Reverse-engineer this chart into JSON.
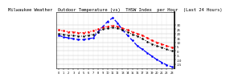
{
  "title": "Milwaukee Weather  Outdoor Temperature (vs)  THSW Index  per Hour  (Last 24 Hours)",
  "outdoor_temp": [
    24,
    23,
    22,
    22,
    21,
    21,
    22,
    23,
    25,
    27,
    28,
    29,
    28,
    26,
    24,
    22,
    20,
    18,
    15,
    12,
    10,
    8,
    6,
    4
  ],
  "thsw_index": [
    18,
    16,
    15,
    14,
    13,
    13,
    14,
    15,
    22,
    28,
    34,
    38,
    32,
    24,
    18,
    12,
    6,
    2,
    -2,
    -6,
    -10,
    -13,
    -16,
    -18
  ],
  "heat_index": [
    20,
    19,
    18,
    18,
    17,
    17,
    18,
    19,
    22,
    25,
    26,
    27,
    26,
    24,
    22,
    19,
    17,
    14,
    11,
    8,
    6,
    4,
    2,
    0
  ],
  "hours": [
    "0",
    "1",
    "2",
    "3",
    "4",
    "5",
    "6",
    "7",
    "8",
    "9",
    "10",
    "11",
    "12",
    "13",
    "14",
    "15",
    "16",
    "17",
    "18",
    "19",
    "20",
    "21",
    "22",
    "23"
  ],
  "ylim": [
    -20,
    45
  ],
  "ytick_vals": [
    30,
    25,
    20,
    15,
    10,
    5,
    0,
    -5,
    -10,
    -15
  ],
  "bg_color": "#ffffff",
  "grid_color": "#c0c0c0",
  "temp_color": "#ff0000",
  "thsw_color": "#0000ff",
  "heat_color": "#000000",
  "title_fontsize": 4.0
}
